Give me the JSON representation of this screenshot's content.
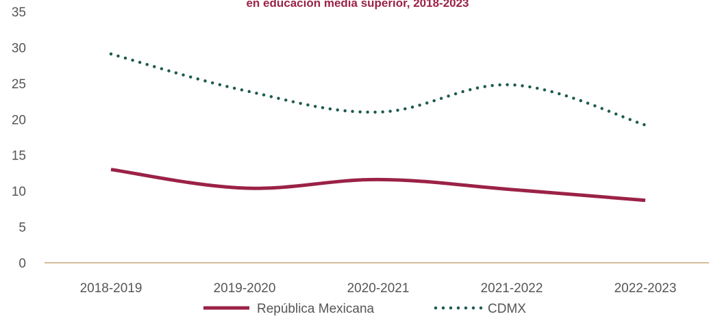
{
  "chart_data": {
    "type": "line",
    "title": "en educación media superior, 2018-2023",
    "xlabel": "",
    "ylabel": "",
    "categories": [
      "2018-2019",
      "2019-2020",
      "2020-2021",
      "2021-2022",
      "2022-2023"
    ],
    "y_ticks": [
      "0",
      "5",
      "10",
      "15",
      "20",
      "25",
      "30",
      "35"
    ],
    "ylim": [
      0,
      35
    ],
    "grid": false,
    "legend_position": "bottom",
    "series": [
      {
        "name": "República Mexicana",
        "values": [
          13.0,
          10.4,
          11.6,
          10.2,
          8.7
        ],
        "color": "#9b2247",
        "style": "solid"
      },
      {
        "name": "CDMX",
        "values": [
          29.1,
          24.0,
          21.0,
          24.8,
          19.2
        ],
        "color": "#1e5b4f",
        "style": "dotted"
      }
    ],
    "colors": {
      "title": "#9b2247",
      "axis": "#bc955c",
      "text": "#555555"
    }
  }
}
